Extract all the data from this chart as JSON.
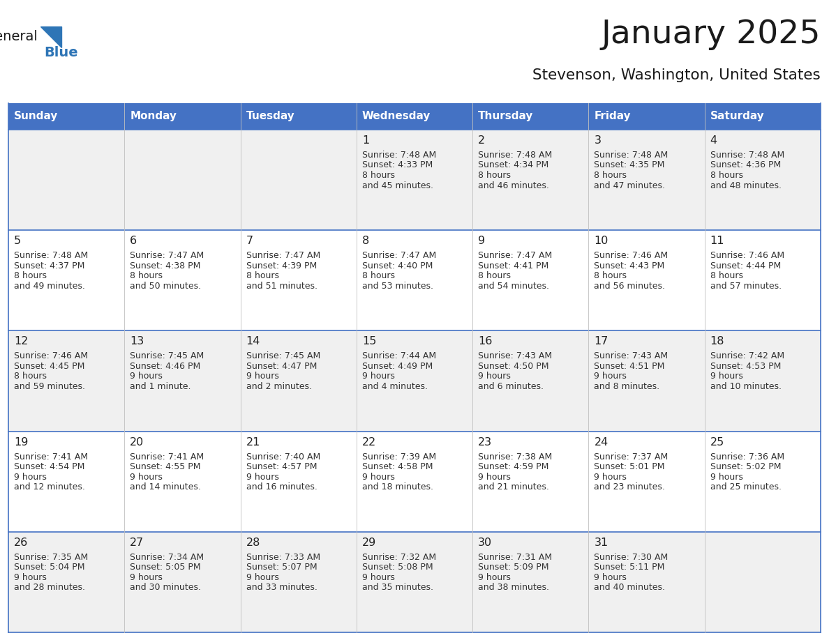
{
  "title": "January 2025",
  "subtitle": "Stevenson, Washington, United States",
  "days_of_week": [
    "Sunday",
    "Monday",
    "Tuesday",
    "Wednesday",
    "Thursday",
    "Friday",
    "Saturday"
  ],
  "header_bg": "#4472C4",
  "header_text": "#FFFFFF",
  "cell_bg_odd": "#F0F0F0",
  "cell_bg_even": "#FFFFFF",
  "border_color": "#4472C4",
  "row_line_color": "#4472C4",
  "col_line_color": "#C0C0C0",
  "day_num_color": "#222222",
  "text_color": "#333333",
  "logo_general_color": "#1a1a1a",
  "logo_blue_color": "#2E75B6",
  "calendar_data": [
    [
      null,
      null,
      null,
      {
        "day": 1,
        "sunrise": "7:48 AM",
        "sunset": "4:33 PM",
        "daylight": "8 hours and 45 minutes."
      },
      {
        "day": 2,
        "sunrise": "7:48 AM",
        "sunset": "4:34 PM",
        "daylight": "8 hours and 46 minutes."
      },
      {
        "day": 3,
        "sunrise": "7:48 AM",
        "sunset": "4:35 PM",
        "daylight": "8 hours and 47 minutes."
      },
      {
        "day": 4,
        "sunrise": "7:48 AM",
        "sunset": "4:36 PM",
        "daylight": "8 hours and 48 minutes."
      }
    ],
    [
      {
        "day": 5,
        "sunrise": "7:48 AM",
        "sunset": "4:37 PM",
        "daylight": "8 hours and 49 minutes."
      },
      {
        "day": 6,
        "sunrise": "7:47 AM",
        "sunset": "4:38 PM",
        "daylight": "8 hours and 50 minutes."
      },
      {
        "day": 7,
        "sunrise": "7:47 AM",
        "sunset": "4:39 PM",
        "daylight": "8 hours and 51 minutes."
      },
      {
        "day": 8,
        "sunrise": "7:47 AM",
        "sunset": "4:40 PM",
        "daylight": "8 hours and 53 minutes."
      },
      {
        "day": 9,
        "sunrise": "7:47 AM",
        "sunset": "4:41 PM",
        "daylight": "8 hours and 54 minutes."
      },
      {
        "day": 10,
        "sunrise": "7:46 AM",
        "sunset": "4:43 PM",
        "daylight": "8 hours and 56 minutes."
      },
      {
        "day": 11,
        "sunrise": "7:46 AM",
        "sunset": "4:44 PM",
        "daylight": "8 hours and 57 minutes."
      }
    ],
    [
      {
        "day": 12,
        "sunrise": "7:46 AM",
        "sunset": "4:45 PM",
        "daylight": "8 hours and 59 minutes."
      },
      {
        "day": 13,
        "sunrise": "7:45 AM",
        "sunset": "4:46 PM",
        "daylight": "9 hours and 1 minute."
      },
      {
        "day": 14,
        "sunrise": "7:45 AM",
        "sunset": "4:47 PM",
        "daylight": "9 hours and 2 minutes."
      },
      {
        "day": 15,
        "sunrise": "7:44 AM",
        "sunset": "4:49 PM",
        "daylight": "9 hours and 4 minutes."
      },
      {
        "day": 16,
        "sunrise": "7:43 AM",
        "sunset": "4:50 PM",
        "daylight": "9 hours and 6 minutes."
      },
      {
        "day": 17,
        "sunrise": "7:43 AM",
        "sunset": "4:51 PM",
        "daylight": "9 hours and 8 minutes."
      },
      {
        "day": 18,
        "sunrise": "7:42 AM",
        "sunset": "4:53 PM",
        "daylight": "9 hours and 10 minutes."
      }
    ],
    [
      {
        "day": 19,
        "sunrise": "7:41 AM",
        "sunset": "4:54 PM",
        "daylight": "9 hours and 12 minutes."
      },
      {
        "day": 20,
        "sunrise": "7:41 AM",
        "sunset": "4:55 PM",
        "daylight": "9 hours and 14 minutes."
      },
      {
        "day": 21,
        "sunrise": "7:40 AM",
        "sunset": "4:57 PM",
        "daylight": "9 hours and 16 minutes."
      },
      {
        "day": 22,
        "sunrise": "7:39 AM",
        "sunset": "4:58 PM",
        "daylight": "9 hours and 18 minutes."
      },
      {
        "day": 23,
        "sunrise": "7:38 AM",
        "sunset": "4:59 PM",
        "daylight": "9 hours and 21 minutes."
      },
      {
        "day": 24,
        "sunrise": "7:37 AM",
        "sunset": "5:01 PM",
        "daylight": "9 hours and 23 minutes."
      },
      {
        "day": 25,
        "sunrise": "7:36 AM",
        "sunset": "5:02 PM",
        "daylight": "9 hours and 25 minutes."
      }
    ],
    [
      {
        "day": 26,
        "sunrise": "7:35 AM",
        "sunset": "5:04 PM",
        "daylight": "9 hours and 28 minutes."
      },
      {
        "day": 27,
        "sunrise": "7:34 AM",
        "sunset": "5:05 PM",
        "daylight": "9 hours and 30 minutes."
      },
      {
        "day": 28,
        "sunrise": "7:33 AM",
        "sunset": "5:07 PM",
        "daylight": "9 hours and 33 minutes."
      },
      {
        "day": 29,
        "sunrise": "7:32 AM",
        "sunset": "5:08 PM",
        "daylight": "9 hours and 35 minutes."
      },
      {
        "day": 30,
        "sunrise": "7:31 AM",
        "sunset": "5:09 PM",
        "daylight": "9 hours and 38 minutes."
      },
      {
        "day": 31,
        "sunrise": "7:30 AM",
        "sunset": "5:11 PM",
        "daylight": "9 hours and 40 minutes."
      },
      null
    ]
  ]
}
